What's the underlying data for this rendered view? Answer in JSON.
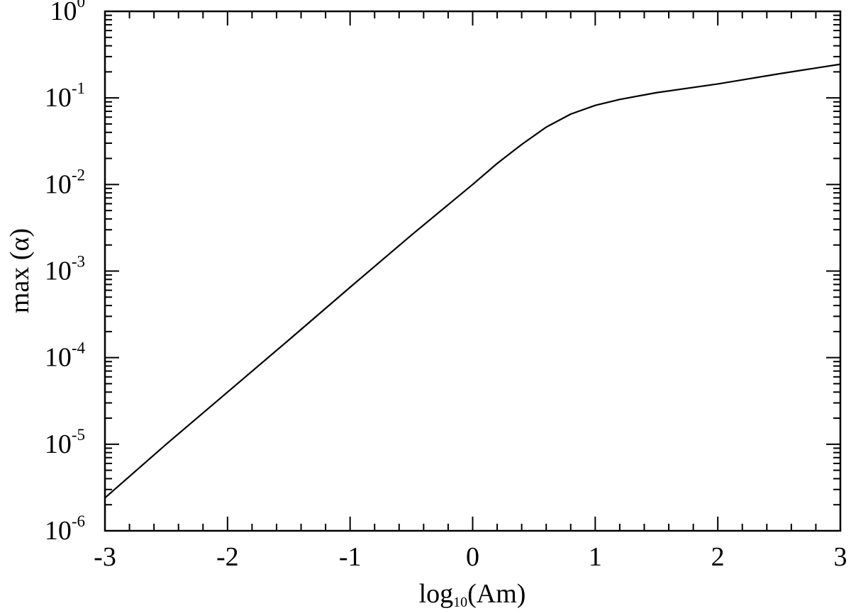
{
  "chart_data": {
    "type": "line",
    "title": "",
    "xlabel": {
      "prefix": "log",
      "subscript": "10",
      "suffix": "(Am)"
    },
    "ylabel": "max (α)",
    "xlim": [
      -3,
      3
    ],
    "ylim": [
      1e-06,
      1
    ],
    "y_scale": "log",
    "grid": false,
    "x_tick_labels": [
      "-3",
      "-2",
      "-1",
      "0",
      "1",
      "2",
      "3"
    ],
    "y_tick_labels": [
      {
        "base": "10",
        "exp": "-6"
      },
      {
        "base": "10",
        "exp": "-5"
      },
      {
        "base": "10",
        "exp": "-4"
      },
      {
        "base": "10",
        "exp": "-3"
      },
      {
        "base": "10",
        "exp": "-2"
      },
      {
        "base": "10",
        "exp": "-1"
      },
      {
        "base": "10",
        "exp": "0"
      }
    ],
    "series": [
      {
        "color": "#000000",
        "x": [
          -3.0,
          -2.5,
          -2.0,
          -1.5,
          -1.0,
          -0.5,
          0.0,
          0.2,
          0.4,
          0.6,
          0.8,
          1.0,
          1.2,
          1.5,
          2.0,
          2.5,
          3.0
        ],
        "y": [
          2.4e-06,
          1e-05,
          4e-05,
          0.00016,
          0.00065,
          0.0026,
          0.01,
          0.0175,
          0.029,
          0.046,
          0.065,
          0.082,
          0.096,
          0.115,
          0.145,
          0.19,
          0.245
        ]
      }
    ]
  }
}
